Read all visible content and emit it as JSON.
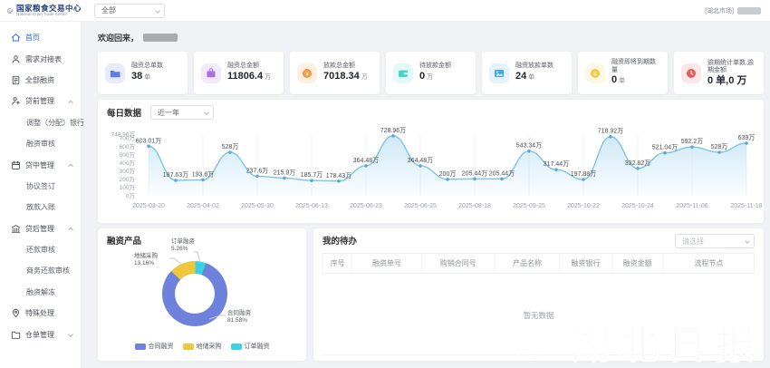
{
  "header": {
    "org_name": "国家粮食交易中心",
    "org_name_en": "National Grain Trade Center",
    "scope_select_value": "全部",
    "market_tag": "[湖北市场]"
  },
  "sidebar": {
    "items": [
      {
        "label": "首页",
        "icon": "home",
        "active": true
      },
      {
        "label": "需求对接表",
        "icon": "user"
      },
      {
        "label": "全部融资",
        "icon": "file"
      },
      {
        "label": "贷前管理",
        "icon": "loan-pre",
        "group": true,
        "expanded": true
      },
      {
        "label": "调整（分配）银行",
        "child": true
      },
      {
        "label": "融资审核",
        "child": true
      },
      {
        "label": "贷中管理",
        "icon": "loan-mid",
        "group": true,
        "expanded": true
      },
      {
        "label": "协议签订",
        "child": true
      },
      {
        "label": "放款入账",
        "child": true
      },
      {
        "label": "贷后管理",
        "icon": "loan-post",
        "group": true,
        "expanded": true
      },
      {
        "label": "还款审核",
        "child": true
      },
      {
        "label": "商务还款审核",
        "child": true
      },
      {
        "label": "融资解冻",
        "child": true
      },
      {
        "label": "特殊处理",
        "icon": "pin"
      },
      {
        "label": "仓单管理",
        "icon": "folder",
        "group": true,
        "expanded": false
      }
    ]
  },
  "main": {
    "welcome_prefix": "欢迎回来，",
    "stats": [
      {
        "label": "融资总单数",
        "value": "38",
        "unit": "单",
        "icon": "folder",
        "color": "#5b7ce9"
      },
      {
        "label": "融资总金额",
        "value": "11806.4",
        "unit": "万",
        "icon": "box",
        "color": "#ab6fe0"
      },
      {
        "label": "放款总金额",
        "value": "7018.34",
        "unit": "万",
        "icon": "coin",
        "color": "#f09b3c"
      },
      {
        "label": "待放款金额",
        "value": "0",
        "unit": "万",
        "icon": "wallet",
        "color": "#45d4c6"
      },
      {
        "label": "融资放款单数",
        "value": "24",
        "unit": "单",
        "icon": "image",
        "color": "#41a8f0"
      },
      {
        "label": "融资即将到期数量",
        "value": "0",
        "unit": "单",
        "icon": "coin",
        "color": "#f5c842"
      },
      {
        "label": "逾期统计单数,逾期金额",
        "value": "0 单,0 万",
        "unit": "",
        "icon": "clock",
        "color": "#e45b5b"
      }
    ]
  },
  "chart_data": [
    {
      "type": "area",
      "title": "每日数据",
      "range_selector": "近一年",
      "x_tick_labels": [
        "2025-03-20",
        "2025-04-02",
        "2025-05-30",
        "2025-06-13",
        "2025-06-23",
        "2025-06-25",
        "2025-08-18",
        "2025-09-25",
        "2025-10-22",
        "2025-10-24",
        "2025-11-06",
        "2025-11-18"
      ],
      "values": [
        603.01,
        187.63,
        193.6,
        528,
        237.6,
        215.9,
        185.7,
        178.43,
        364.48,
        728.96,
        364.48,
        200,
        205.44,
        205.44,
        543.34,
        317.44,
        197.88,
        718.92,
        332.82,
        521.04,
        592.2,
        528,
        639
      ],
      "point_labels": [
        "603.01万",
        "187.63万",
        "193.6万",
        "528万",
        "237.6万",
        "215.9万",
        "185.7万",
        "178.43万",
        "364.48万",
        "728.96万",
        "364.48万",
        "200万",
        "205.44万",
        "205.44万",
        "543.34万",
        "317.44万",
        "197.88万",
        "718.92万",
        "332.82万",
        "521.04万",
        "592.2万",
        "528万",
        "639万"
      ],
      "y_ticks": [
        {
          "v": 748.96,
          "label": "748.96万"
        },
        {
          "v": 700,
          "label": "700万"
        },
        {
          "v": 600,
          "label": "600万"
        },
        {
          "v": 500,
          "label": "500万"
        },
        {
          "v": 400,
          "label": "400万"
        },
        {
          "v": 300,
          "label": "300万"
        },
        {
          "v": 200,
          "label": "200万"
        },
        {
          "v": 100,
          "label": "100万"
        },
        {
          "v": 0,
          "label": "0万"
        }
      ],
      "ylim": [
        0,
        748.96
      ],
      "line_color": "#7ec3e8",
      "grid": "vertical-faint",
      "legend_position": "none"
    },
    {
      "type": "pie",
      "title": "融资产品",
      "slices": [
        {
          "name": "合同融资",
          "pct": 81.58,
          "color": "#6e82db"
        },
        {
          "name": "地储采购",
          "pct": 13.16,
          "color": "#f0c63f"
        },
        {
          "name": "订单融资",
          "pct": 5.26,
          "color": "#39d3e3"
        }
      ],
      "legend": [
        "合同融资",
        "地储采购",
        "订单融资"
      ],
      "legend_position": "bottom"
    }
  ],
  "todo": {
    "title": "我的待办",
    "select_placeholder": "请选择",
    "columns": [
      "序号",
      "融资单号",
      "购销合同号",
      "产品名称",
      "融资银行",
      "融资金额",
      "流程节点"
    ],
    "rows": [],
    "empty_text": "暂无数据"
  },
  "watermark": "湖北日报"
}
